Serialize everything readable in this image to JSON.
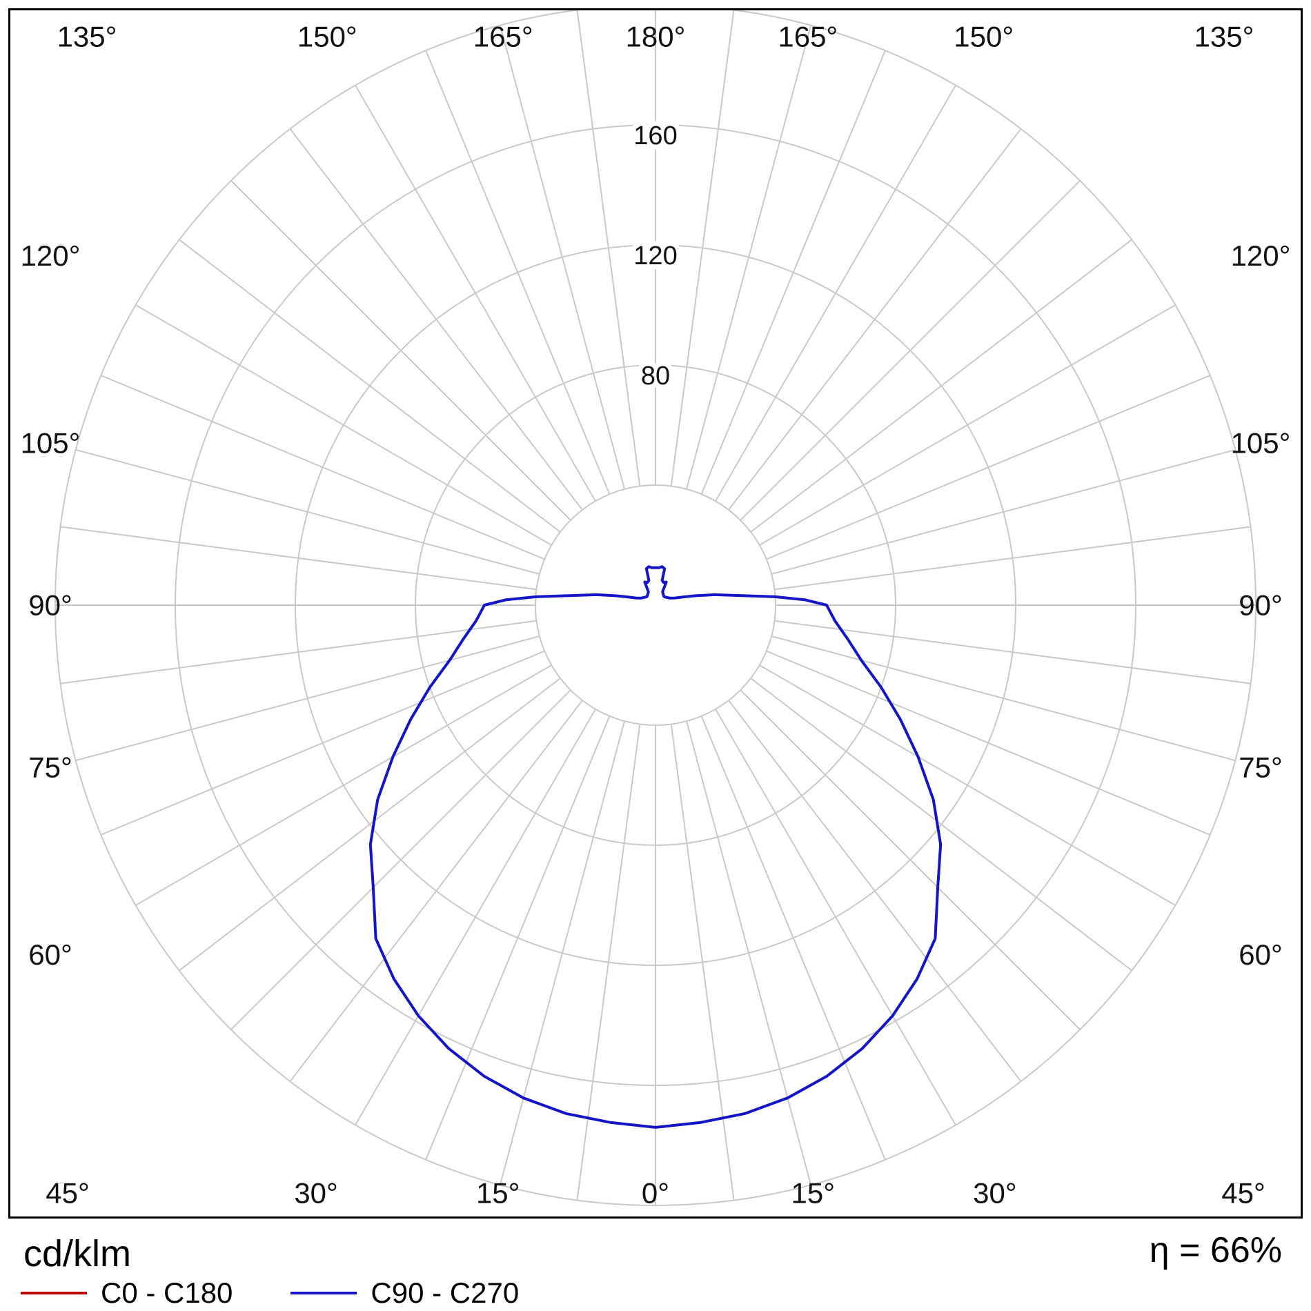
{
  "page": {
    "background": "#ffffff"
  },
  "footer": {
    "unit_label": "cd/klm",
    "efficiency_label": "η = 66%",
    "legend": [
      {
        "label": "C0 - C180",
        "color": "#c00000"
      },
      {
        "label": "C90 - C270",
        "color": "#1414c8"
      }
    ]
  },
  "chart_data": {
    "type": "line",
    "subtype": "polar-photometric",
    "unit": "cd/klm",
    "efficiency_percent": 66,
    "grid": {
      "grid_color": "#c9c9c9",
      "ring_step": 40,
      "ring_max": 200,
      "ring_values": [
        40,
        80,
        120,
        160,
        200
      ],
      "angle_step_deg": 7.5,
      "angle_label_step_deg": 15,
      "ring_label_items": [
        {
          "value": 80,
          "text": "80"
        },
        {
          "value": 120,
          "text": "120"
        },
        {
          "value": 160,
          "text": "160"
        }
      ],
      "angle_labels": [
        {
          "deg": 0,
          "text": "0°"
        },
        {
          "deg": 15,
          "text": "15°"
        },
        {
          "deg": 30,
          "text": "30°"
        },
        {
          "deg": 45,
          "text": "45°"
        },
        {
          "deg": 60,
          "text": "60°"
        },
        {
          "deg": 75,
          "text": "75°"
        },
        {
          "deg": 90,
          "text": "90°"
        },
        {
          "deg": 105,
          "text": "105°"
        },
        {
          "deg": 120,
          "text": "120°"
        },
        {
          "deg": 135,
          "text": "135°"
        },
        {
          "deg": 150,
          "text": "150°"
        },
        {
          "deg": 165,
          "text": "165°"
        },
        {
          "deg": 180,
          "text": "180°"
        }
      ]
    },
    "series": [
      {
        "name": "C0 - C180",
        "color": "#c00000",
        "width": 3,
        "gamma_deg": [
          0,
          5,
          10,
          15,
          20,
          25,
          30,
          35,
          40,
          45,
          50,
          55,
          60,
          65,
          70,
          75,
          80,
          85,
          90,
          92,
          94,
          96,
          98,
          100,
          103,
          106,
          110,
          115,
          125,
          135,
          145,
          152,
          155,
          160,
          165,
          166,
          170,
          175,
          180
        ],
        "values": [
          174,
          173,
          172,
          170,
          167,
          163,
          158,
          152,
          145,
          133,
          124,
          113,
          101,
          90,
          80,
          71,
          65,
          60,
          57,
          50,
          40,
          30,
          24,
          20,
          14,
          10,
          7,
          5.5,
          4.5,
          4,
          4.5,
          5,
          8.5,
          8,
          8.5,
          12.5,
          13,
          12.5,
          12.5
        ]
      },
      {
        "name": "C90 - C270",
        "color": "#1414c8",
        "width": 4,
        "gamma_deg": [
          0,
          5,
          10,
          15,
          20,
          25,
          30,
          35,
          40,
          45,
          50,
          55,
          60,
          65,
          70,
          75,
          80,
          85,
          90,
          92,
          94,
          96,
          98,
          100,
          103,
          106,
          110,
          115,
          125,
          135,
          145,
          152,
          155,
          160,
          165,
          166,
          170,
          175,
          180
        ],
        "values": [
          174,
          173,
          172,
          170,
          167,
          163,
          158,
          152,
          145,
          133,
          124,
          113,
          101,
          90,
          80,
          71,
          65,
          60,
          57,
          50,
          40,
          30,
          24,
          20,
          14,
          10,
          7,
          5.5,
          4.5,
          4,
          4.5,
          5,
          8.5,
          8,
          8.5,
          12.5,
          13,
          12.5,
          12.5
        ]
      }
    ]
  }
}
